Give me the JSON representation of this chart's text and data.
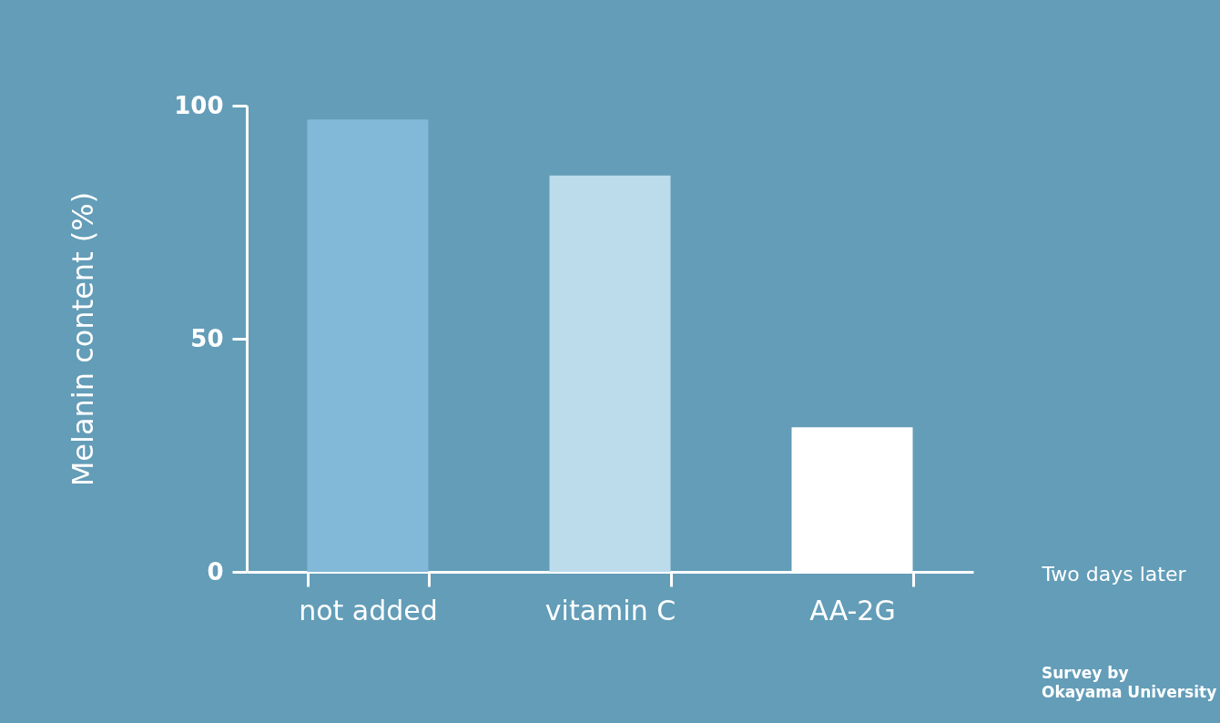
{
  "chart_data": {
    "type": "bar",
    "categories": [
      "not added",
      "vitamin C",
      "AA-2G"
    ],
    "values": [
      97,
      85,
      31
    ],
    "colors": [
      "#82b9d9",
      "#bcdcec",
      "#ffffff"
    ],
    "ylabel": "Melanin content (%)",
    "xlabel": "Two days later",
    "ylim": [
      0,
      100
    ],
    "yticks": [
      0,
      50,
      100
    ],
    "grid": false,
    "annotations": [
      "Survey by\nOkayama University"
    ]
  }
}
